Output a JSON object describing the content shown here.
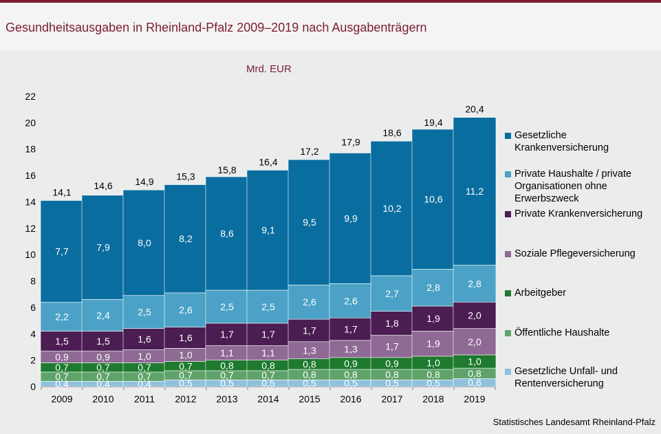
{
  "header": {
    "title": "Gesundheitsausgaben in Rheinland-Pfalz 2009–2019 nach Ausgabenträgern"
  },
  "footer": {
    "source": "Statistisches Landesamt Rheinland-Pfalz"
  },
  "chart_data": {
    "type": "bar",
    "stacked": true,
    "unit_label": "Mrd. EUR",
    "categories": [
      "2009",
      "2010",
      "2011",
      "2012",
      "2013",
      "2014",
      "2015",
      "2016",
      "2017",
      "2018",
      "2019"
    ],
    "ylim": [
      0,
      22
    ],
    "yticks": [
      0,
      2,
      4,
      6,
      8,
      10,
      12,
      14,
      16,
      18,
      20,
      22
    ],
    "grid": false,
    "legend_position": "right",
    "series": [
      {
        "name": "Gesetzliche Unfall- und Rentenversicherung",
        "color": "#8fc1de",
        "label_color": "#ffffff",
        "values": [
          0.4,
          0.4,
          0.4,
          0.5,
          0.5,
          0.5,
          0.5,
          0.5,
          0.5,
          0.5,
          0.6
        ],
        "labels": [
          "0,4",
          "0,4",
          "0,4",
          "0,5",
          "0,5",
          "0,5",
          "0,5",
          "0,5",
          "0,5",
          "0,5",
          "0,6"
        ]
      },
      {
        "name": "Öffentliche Haushalte",
        "color": "#5fa36a",
        "label_color": "#ffffff",
        "values": [
          0.7,
          0.7,
          0.7,
          0.7,
          0.7,
          0.7,
          0.8,
          0.8,
          0.8,
          0.8,
          0.8
        ],
        "labels": [
          "0,7",
          "0,7",
          "0,7",
          "0,7",
          "0,7",
          "0,7",
          "0,8",
          "0,8",
          "0,8",
          "0,8",
          "0,8"
        ]
      },
      {
        "name": "Arbeitgeber",
        "color": "#1e7a2e",
        "label_color": "#ffffff",
        "values": [
          0.7,
          0.7,
          0.7,
          0.7,
          0.8,
          0.8,
          0.8,
          0.9,
          0.9,
          1.0,
          1.0
        ],
        "labels": [
          "0,7",
          "0,7",
          "0,7",
          "0,7",
          "0,8",
          "0,8",
          "0,8",
          "0,9",
          "0,9",
          "1,0",
          "1,0"
        ]
      },
      {
        "name": "Soziale Pflegeversicherung",
        "color": "#8e6a94",
        "label_color": "#ffffff",
        "values": [
          0.9,
          0.9,
          1.0,
          1.0,
          1.1,
          1.1,
          1.3,
          1.3,
          1.7,
          1.9,
          2.0
        ],
        "labels": [
          "0,9",
          "0,9",
          "1,0",
          "1,0",
          "1,1",
          "1,1",
          "1,3",
          "1,3",
          "1,7",
          "1,9",
          "2,0"
        ]
      },
      {
        "name": "Private Krankenversicherung",
        "color": "#4b1d52",
        "label_color": "#ffffff",
        "values": [
          1.5,
          1.5,
          1.6,
          1.6,
          1.7,
          1.7,
          1.7,
          1.7,
          1.8,
          1.9,
          2.0
        ],
        "labels": [
          "1,5",
          "1,5",
          "1,6",
          "1,6",
          "1,7",
          "1,7",
          "1,7",
          "1,7",
          "1,8",
          "1,9",
          "2,0"
        ]
      },
      {
        "name": "Private Haushalte / private Organisationen ohne Erwerbszweck",
        "color": "#4ba2c6",
        "label_color": "#ffffff",
        "values": [
          2.2,
          2.4,
          2.5,
          2.6,
          2.5,
          2.5,
          2.6,
          2.6,
          2.7,
          2.8,
          2.8
        ],
        "labels": [
          "2,2",
          "2,4",
          "2,5",
          "2,6",
          "2,5",
          "2,5",
          "2,6",
          "2,6",
          "2,7",
          "2,8",
          "2,8"
        ]
      },
      {
        "name": "Gesetzliche Krankenversicherung",
        "color": "#0a6d9f",
        "label_color": "#ffffff",
        "values": [
          7.7,
          7.9,
          8.0,
          8.2,
          8.6,
          9.1,
          9.5,
          9.9,
          10.2,
          10.6,
          11.2
        ],
        "labels": [
          "7,7",
          "7,9",
          "8,0",
          "8,2",
          "8,6",
          "9,1",
          "9,5",
          "9,9",
          "10,2",
          "10,6",
          "11,2"
        ]
      }
    ],
    "totals": [
      14.1,
      14.6,
      14.9,
      15.3,
      15.8,
      16.4,
      17.2,
      17.9,
      18.6,
      19.4,
      20.4
    ],
    "total_labels": [
      "14,1",
      "14,6",
      "14,9",
      "15,3",
      "15,8",
      "16,4",
      "17,2",
      "17,9",
      "18,6",
      "19,4",
      "20,4"
    ],
    "legend": [
      {
        "lines": [
          "Gesetzliche",
          "Krankenversicherung"
        ],
        "color": "#0a6d9f"
      },
      {
        "lines": [
          "Private Haushalte / private",
          "Organisationen ohne",
          "Erwerbszweck"
        ],
        "color": "#4ba2c6"
      },
      {
        "lines": [
          "Private Krankenversicherung"
        ],
        "color": "#4b1d52"
      },
      {
        "lines": [
          "Soziale Pflegeversicherung"
        ],
        "color": "#8e6a94"
      },
      {
        "lines": [
          "Arbeitgeber"
        ],
        "color": "#1e7a2e"
      },
      {
        "lines": [
          "Öffentliche Haushalte"
        ],
        "color": "#5fa36a"
      },
      {
        "lines": [
          "Gesetzliche Unfall- und",
          "Rentenversicherung"
        ],
        "color": "#8fc1de"
      }
    ]
  }
}
